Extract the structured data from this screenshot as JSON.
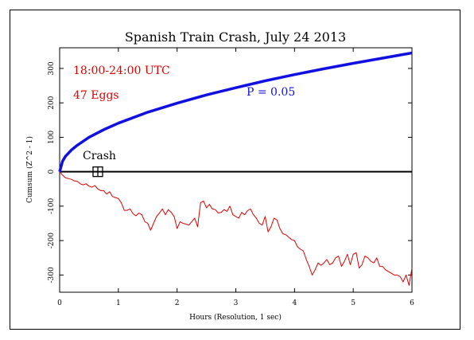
{
  "chart_data": {
    "type": "line",
    "title": "Spanish Train Crash, July 24 2013",
    "xlabel": "Hours (Resolution, 1 sec)",
    "ylabel": "Cumsum (Z^2 - 1)",
    "xlim": [
      0,
      6
    ],
    "ylim": [
      -350,
      360
    ],
    "xticks": [
      "0",
      "1",
      "2",
      "3",
      "4",
      "5",
      "6"
    ],
    "yticks": [
      "-300",
      "-200",
      "-100",
      "0",
      "100",
      "200",
      "300"
    ],
    "grid": false,
    "annotations": {
      "time_range": "18:00-24:00 UTC",
      "eggs": "47 Eggs",
      "probability": "P = 0.05",
      "event": "Crash"
    },
    "event_marker": {
      "x": 0.65,
      "y": 0
    },
    "series": [
      {
        "role": "probability envelope",
        "color": "#1010e0",
        "x": [
          0,
          0.05,
          0.1,
          0.2,
          0.3,
          0.5,
          0.75,
          1,
          1.5,
          2,
          2.5,
          3,
          3.5,
          4,
          4.5,
          5,
          5.5,
          6
        ],
        "y": [
          0,
          31,
          45,
          63,
          77,
          100,
          122,
          141,
          173,
          199,
          223,
          244,
          264,
          282,
          299,
          315,
          330,
          345
        ]
      },
      {
        "role": "cumulative deviation",
        "color": "#e00000",
        "x": [
          0,
          0.05,
          0.1,
          0.15,
          0.2,
          0.25,
          0.3,
          0.35,
          0.4,
          0.45,
          0.5,
          0.55,
          0.6,
          0.65,
          0.7,
          0.75,
          0.8,
          0.85,
          0.9,
          0.95,
          1.0,
          1.05,
          1.1,
          1.15,
          1.2,
          1.25,
          1.3,
          1.35,
          1.4,
          1.45,
          1.5,
          1.55,
          1.6,
          1.65,
          1.7,
          1.75,
          1.8,
          1.85,
          1.9,
          1.95,
          2.0,
          2.05,
          2.1,
          2.15,
          2.2,
          2.25,
          2.3,
          2.35,
          2.4,
          2.45,
          2.5,
          2.55,
          2.6,
          2.65,
          2.7,
          2.75,
          2.8,
          2.85,
          2.9,
          2.95,
          3.0,
          3.05,
          3.1,
          3.15,
          3.2,
          3.25,
          3.3,
          3.35,
          3.4,
          3.45,
          3.5,
          3.55,
          3.6,
          3.65,
          3.7,
          3.75,
          3.8,
          3.85,
          3.9,
          3.95,
          4.0,
          4.05,
          4.1,
          4.15,
          4.2,
          4.25,
          4.3,
          4.35,
          4.4,
          4.45,
          4.5,
          4.55,
          4.6,
          4.65,
          4.7,
          4.75,
          4.8,
          4.85,
          4.9,
          4.95,
          5.0,
          5.05,
          5.1,
          5.15,
          5.2,
          5.25,
          5.3,
          5.35,
          5.4,
          5.45,
          5.5,
          5.55,
          5.6,
          5.65,
          5.7,
          5.75,
          5.8,
          5.85,
          5.9,
          5.95,
          6.0
        ],
        "y": [
          0,
          -10,
          -18,
          -20,
          -22,
          -27,
          -28,
          -35,
          -38,
          -35,
          -42,
          -45,
          -40,
          -50,
          -55,
          -55,
          -65,
          -58,
          -72,
          -75,
          -78,
          -90,
          -112,
          -112,
          -108,
          -122,
          -128,
          -120,
          -125,
          -145,
          -150,
          -170,
          -150,
          -130,
          -120,
          -108,
          -125,
          -110,
          -118,
          -130,
          -165,
          -145,
          -150,
          -152,
          -155,
          -145,
          -135,
          -160,
          -90,
          -85,
          -105,
          -95,
          -108,
          -110,
          -120,
          -118,
          -110,
          -115,
          -100,
          -125,
          -130,
          -135,
          -118,
          -125,
          -113,
          -108,
          -125,
          -135,
          -150,
          -155,
          -130,
          -175,
          -160,
          -135,
          -140,
          -165,
          -180,
          -183,
          -190,
          -197,
          -200,
          -218,
          -225,
          -230,
          -255,
          -275,
          -300,
          -285,
          -265,
          -272,
          -265,
          -255,
          -270,
          -265,
          -250,
          -245,
          -275,
          -260,
          -240,
          -270,
          -240,
          -235,
          -280,
          -270,
          -245,
          -250,
          -260,
          -265,
          -250,
          -275,
          -275,
          -285,
          -290,
          -295,
          -300,
          -300,
          -305,
          -320,
          -300,
          -330,
          -280
        ]
      }
    ]
  }
}
